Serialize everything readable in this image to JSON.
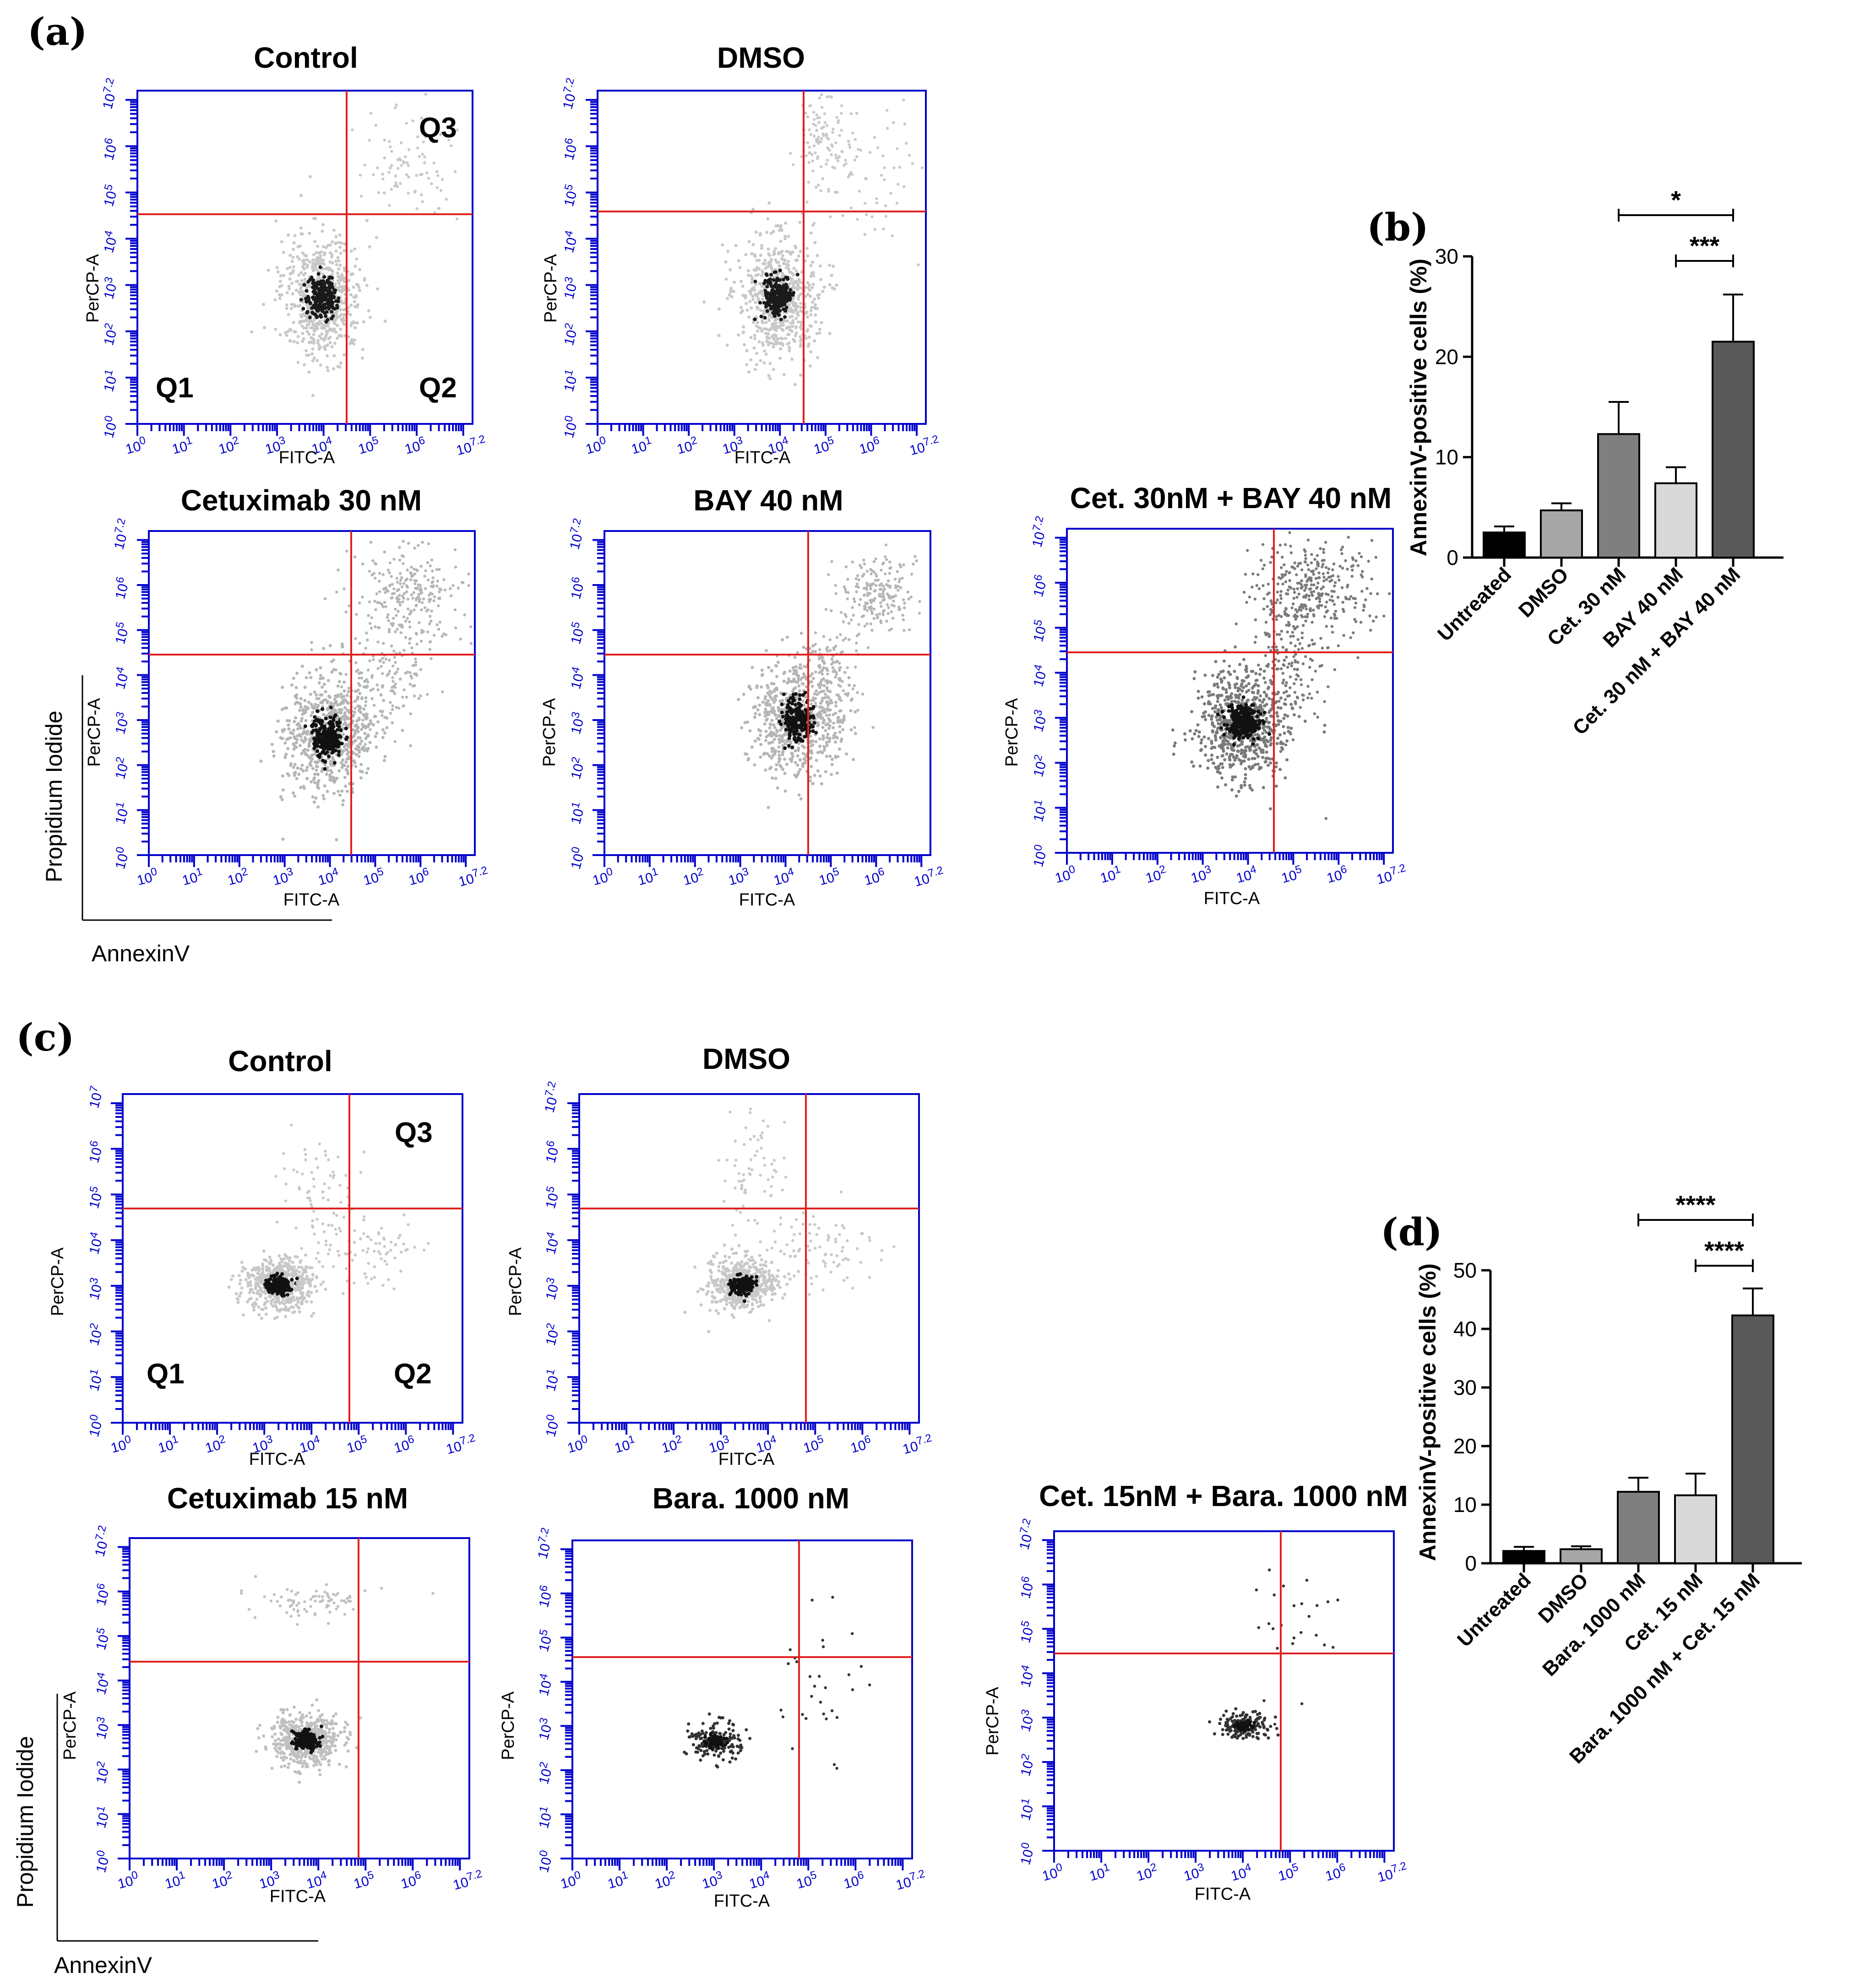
{
  "figure": {
    "panels": {
      "a": "(a)",
      "b": "(b)",
      "c": "(c)",
      "d": "(d)"
    },
    "flow_axis": {
      "x_label": "FITC-A",
      "y_label": "PerCP-A",
      "tick_labels": [
        "10^0",
        "10^1",
        "10^2",
        "10^3",
        "10^4",
        "10^5",
        "10^6",
        "10^7.2"
      ],
      "tick_labels_c_top": [
        "10^0",
        "10^1",
        "10^2",
        "10^3",
        "10^4",
        "10^5",
        "10^6",
        "10^7"
      ]
    },
    "quadrants": {
      "q1": "Q1",
      "q2": "Q2",
      "q3": "Q3"
    },
    "legend_axes": {
      "y": "Propidium Iodide",
      "x": "AnnexinV"
    },
    "plots_a": [
      {
        "title": "Control"
      },
      {
        "title": "DMSO"
      },
      {
        "title": "Cetuximab 30 nM"
      },
      {
        "title": "BAY 40 nM"
      },
      {
        "title": "Cet. 30nM + BAY 40 nM"
      }
    ],
    "plots_c": [
      {
        "title": "Control"
      },
      {
        "title": "DMSO"
      },
      {
        "title": "Cetuximab 15 nM"
      },
      {
        "title": "Bara. 1000 nM"
      },
      {
        "title": "Cet. 15nM + Bara. 1000 nM"
      }
    ]
  },
  "chart_data": [
    {
      "id": "b",
      "type": "bar",
      "ylabel": "AnnexinV-positive cells (%)",
      "ylim": [
        0,
        30
      ],
      "yticks": [
        0,
        10,
        20,
        30
      ],
      "categories": [
        "Untreated",
        "DMSO",
        "Cet. 30 nM",
        "BAY 40 nM",
        "Cet. 30 nM + BAY 40 nM"
      ],
      "values": [
        2.5,
        4.7,
        12.3,
        7.4,
        21.5
      ],
      "errors": [
        0.6,
        0.7,
        3.2,
        1.6,
        4.7
      ],
      "colors": [
        "#000000",
        "#a6a6a6",
        "#7f7f7f",
        "#d9d9d9",
        "#595959"
      ],
      "significance": [
        {
          "from": 2,
          "to": 4,
          "label": "*"
        },
        {
          "from": 3,
          "to": 4,
          "label": "***"
        }
      ]
    },
    {
      "id": "d",
      "type": "bar",
      "ylabel": "AnnexinV-positive cells (%)",
      "ylim": [
        0,
        50
      ],
      "yticks": [
        0,
        10,
        20,
        30,
        40,
        50
      ],
      "categories": [
        "Untreated",
        "DMSO",
        "Bara. 1000 nM",
        "Cet. 15 nM",
        "Bara. 1000 nM + Cet. 15 nM"
      ],
      "values": [
        2.1,
        2.4,
        12.2,
        11.6,
        42.3
      ],
      "errors": [
        0.7,
        0.5,
        2.4,
        3.7,
        4.6
      ],
      "colors": [
        "#000000",
        "#a6a6a6",
        "#7f7f7f",
        "#d9d9d9",
        "#595959"
      ],
      "significance": [
        {
          "from": 2,
          "to": 4,
          "label": "****"
        },
        {
          "from": 3,
          "to": 4,
          "label": "****"
        }
      ]
    }
  ]
}
